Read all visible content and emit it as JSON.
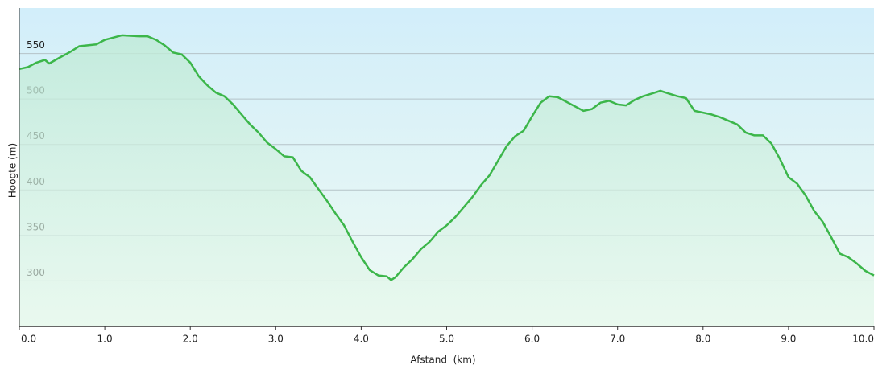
{
  "chart_data": {
    "type": "area",
    "xlabel": "Afstand  (km)",
    "ylabel": "Hoogte (m)",
    "x": [
      0,
      0.1,
      0.2,
      0.3,
      0.35,
      0.5,
      0.6,
      0.7,
      0.9,
      1.0,
      1.2,
      1.4,
      1.5,
      1.6,
      1.7,
      1.8,
      1.9,
      2.0,
      2.1,
      2.2,
      2.3,
      2.4,
      2.5,
      2.6,
      2.7,
      2.8,
      2.9,
      3.0,
      3.1,
      3.2,
      3.3,
      3.4,
      3.5,
      3.6,
      3.7,
      3.8,
      3.9,
      4.0,
      4.1,
      4.2,
      4.3,
      4.35,
      4.4,
      4.5,
      4.6,
      4.7,
      4.8,
      4.9,
      5.0,
      5.1,
      5.2,
      5.3,
      5.4,
      5.5,
      5.6,
      5.7,
      5.8,
      5.9,
      6.0,
      6.1,
      6.2,
      6.3,
      6.4,
      6.5,
      6.6,
      6.7,
      6.8,
      6.9,
      7.0,
      7.1,
      7.2,
      7.3,
      7.4,
      7.5,
      7.6,
      7.7,
      7.8,
      7.9,
      8.0,
      8.1,
      8.2,
      8.3,
      8.4,
      8.5,
      8.6,
      8.7,
      8.8,
      8.9,
      9.0,
      9.1,
      9.2,
      9.3,
      9.4,
      9.5,
      9.6,
      9.7,
      9.8,
      9.9,
      10.0
    ],
    "series": [
      {
        "color": "#3cb64a",
        "values": [
          533,
          535,
          540,
          543,
          539,
          547,
          552,
          558,
          560,
          565,
          570,
          569,
          569,
          565,
          559,
          551,
          549,
          540,
          525,
          515,
          507,
          503,
          494,
          483,
          472,
          463,
          452,
          445,
          437,
          436,
          421,
          414,
          401,
          388,
          374,
          361,
          343,
          326,
          312,
          306,
          305,
          301,
          304,
          315,
          324,
          335,
          343,
          354,
          361,
          370,
          381,
          392,
          405,
          416,
          432,
          448,
          459,
          465,
          481,
          496,
          503,
          502,
          497,
          492,
          487,
          489,
          496,
          498,
          494,
          493,
          499,
          503,
          506,
          509,
          506,
          503,
          501,
          487,
          485,
          483,
          480,
          476,
          472,
          463,
          460,
          460,
          451,
          434,
          414,
          407,
          394,
          377,
          365,
          348,
          330,
          326,
          319,
          311,
          306
        ]
      }
    ],
    "xlim": [
      0,
      10
    ],
    "ylim": [
      250,
      600
    ],
    "xticks": [
      {
        "value": 0,
        "label": "0.0"
      },
      {
        "value": 1,
        "label": "1.0"
      },
      {
        "value": 2,
        "label": "2.0"
      },
      {
        "value": 3,
        "label": "3.0"
      },
      {
        "value": 4,
        "label": "4.0"
      },
      {
        "value": 5,
        "label": "5.0"
      },
      {
        "value": 6,
        "label": "6.0"
      },
      {
        "value": 7,
        "label": "7.0"
      },
      {
        "value": 8,
        "label": "8.0"
      },
      {
        "value": 9,
        "label": "9.0"
      },
      {
        "value": 10,
        "label": "10.0"
      }
    ],
    "yticks": [
      300,
      350,
      400,
      450,
      500,
      550
    ],
    "grid": true
  }
}
